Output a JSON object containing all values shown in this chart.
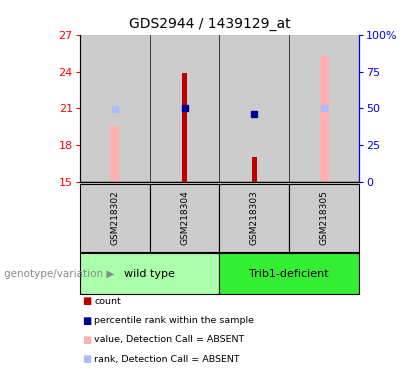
{
  "title": "GDS2944 / 1439129_at",
  "samples": [
    "GSM218302",
    "GSM218304",
    "GSM218303",
    "GSM218305"
  ],
  "ylim_left": [
    15,
    27
  ],
  "ylim_right": [
    0,
    100
  ],
  "yticks_left": [
    15,
    18,
    21,
    24,
    27
  ],
  "yticks_right": [
    0,
    25,
    50,
    75,
    100
  ],
  "ytick_labels_right": [
    "0",
    "25",
    "50",
    "75",
    "100%"
  ],
  "grid_yticks": [
    18,
    21,
    24
  ],
  "red_bars": {
    "GSM218302": null,
    "GSM218304": 23.85,
    "GSM218303": 17.1,
    "GSM218305": null
  },
  "pink_bars": {
    "GSM218302": 19.6,
    "GSM218304": null,
    "GSM218303": null,
    "GSM218305": 25.3
  },
  "blue_squares": {
    "GSM218302": null,
    "GSM218304": 21.05,
    "GSM218303": 20.55,
    "GSM218305": null
  },
  "light_blue_squares": {
    "GSM218302": 20.95,
    "GSM218304": null,
    "GSM218303": null,
    "GSM218305": 21.05
  },
  "red_color": "#bb0000",
  "pink_color": "#ffb0b0",
  "blue_color": "#000099",
  "light_blue_color": "#aabbff",
  "groups_info": [
    {
      "label": "wild type",
      "start": 0,
      "end": 2,
      "color": "#aaffaa"
    },
    {
      "label": "Trib1-deficient",
      "start": 2,
      "end": 4,
      "color": "#33ee33"
    }
  ],
  "legend_items": [
    {
      "color": "#bb0000",
      "label": "count"
    },
    {
      "color": "#000099",
      "label": "percentile rank within the sample"
    },
    {
      "color": "#ffb0b0",
      "label": "value, Detection Call = ABSENT"
    },
    {
      "color": "#aabbff",
      "label": "rank, Detection Call = ABSENT"
    }
  ],
  "group_label": "genotype/variation"
}
